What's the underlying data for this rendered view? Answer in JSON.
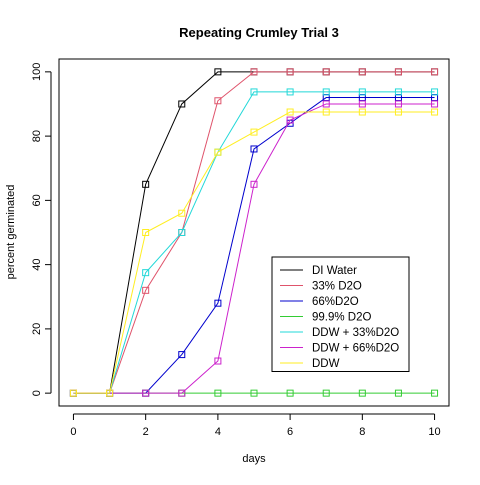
{
  "chart_data": {
    "type": "line",
    "title": "Repeating Crumley Trial 3",
    "xlabel": "days",
    "ylabel": "percent germinated",
    "xlim": [
      -0.4,
      10.4
    ],
    "ylim": [
      -4,
      104
    ],
    "xticks": [
      0,
      2,
      4,
      6,
      8,
      10
    ],
    "yticks": [
      0,
      20,
      40,
      60,
      80,
      100
    ],
    "marker": "open-square",
    "legend_position": "bottom-right",
    "grid": false,
    "x": [
      0,
      1,
      2,
      3,
      4,
      5,
      6,
      7,
      8,
      9,
      10
    ],
    "series": [
      {
        "name": "DI Water",
        "color": "#000000",
        "values": [
          0,
          0,
          65,
          90,
          100,
          100,
          100,
          100,
          100,
          100,
          100
        ]
      },
      {
        "name": "33% D2O",
        "color": "#DF536B",
        "values": [
          0,
          0,
          32,
          50,
          91,
          100,
          100,
          100,
          100,
          100,
          100
        ]
      },
      {
        "name": "66%D2O",
        "color": "#0000CD",
        "values": [
          0,
          0,
          0,
          12,
          28,
          76,
          84,
          92,
          92,
          92,
          92
        ]
      },
      {
        "name": "99.9% D2O",
        "color": "#33CC33",
        "values": [
          0,
          0,
          0,
          0,
          0,
          0,
          0,
          0,
          0,
          0,
          0
        ]
      },
      {
        "name": "DDW + 33%D2O",
        "color": "#22D8D8",
        "values": [
          0,
          0,
          37.5,
          50,
          75,
          93.75,
          93.75,
          93.75,
          93.75,
          93.75,
          93.75
        ]
      },
      {
        "name": "DDW + 66%D2O",
        "color": "#CC22CC",
        "values": [
          0,
          0,
          0,
          0,
          10,
          65,
          85,
          90,
          90,
          90,
          90
        ]
      },
      {
        "name": "DDW",
        "color": "#FFEE22",
        "values": [
          0,
          0,
          50,
          56,
          75,
          81.25,
          87.5,
          87.5,
          87.5,
          87.5,
          87.5
        ]
      }
    ]
  }
}
